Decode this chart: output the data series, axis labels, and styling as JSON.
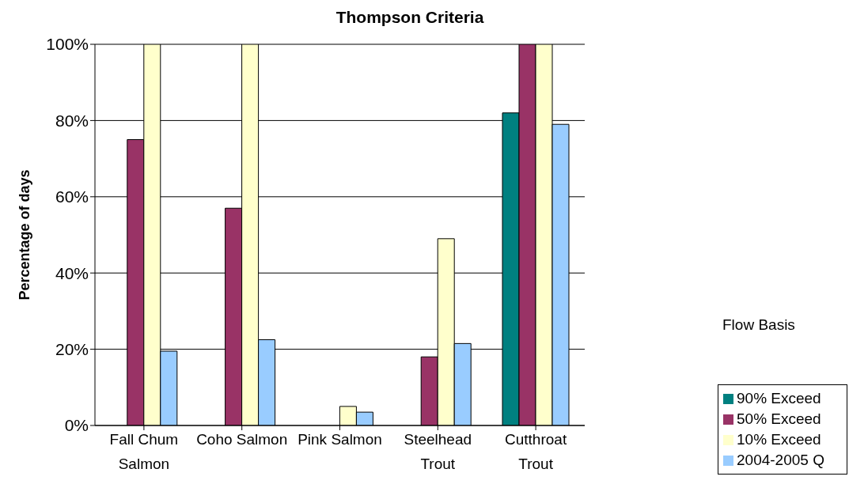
{
  "chart_data": {
    "type": "bar",
    "title": "Thompson Criteria",
    "ylabel": "Percentage of days",
    "legend_title": "Flow Basis",
    "categories": [
      "Fall Chum Salmon",
      "Coho Salmon",
      "Pink Salmon",
      "Steelhead Trout",
      "Cutthroat Trout"
    ],
    "series": [
      {
        "name": "90% Exceed",
        "color": "#008080",
        "values": [
          0,
          0,
          0,
          0,
          82
        ]
      },
      {
        "name": "50% Exceed",
        "color": "#993366",
        "values": [
          75,
          57,
          0,
          18,
          100
        ]
      },
      {
        "name": "10% Exceed",
        "color": "#ffffcc",
        "values": [
          100,
          100,
          5,
          49,
          100
        ]
      },
      {
        "name": "2004-2005 Q",
        "color": "#99ccff",
        "values": [
          19.5,
          22.5,
          3.5,
          21.5,
          79
        ]
      }
    ],
    "ylim": [
      0,
      100
    ],
    "yticks": [
      {
        "value": 0,
        "label": "0%"
      },
      {
        "value": 20,
        "label": "20%"
      },
      {
        "value": 40,
        "label": "40%"
      },
      {
        "value": 60,
        "label": "60%"
      },
      {
        "value": 80,
        "label": "80%"
      },
      {
        "value": 100,
        "label": "100%"
      }
    ],
    "grid": "y",
    "legend": "bottom right"
  }
}
